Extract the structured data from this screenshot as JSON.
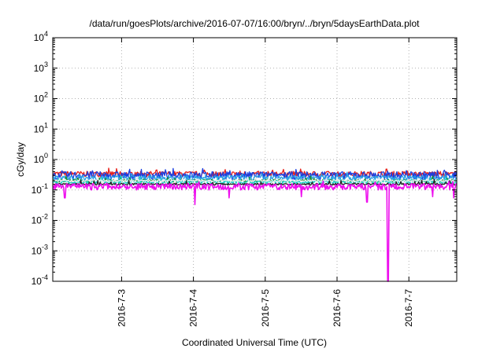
{
  "chart_data": {
    "type": "line",
    "title": "/data/run/goesPlots/archive/2016-07-07/16:00/bryn/../bryn/5daysEarthData.plot",
    "xlabel": "Coordinated Universal Time (UTC)",
    "ylabel": "cGy/day",
    "yscale": "log",
    "ylim": [
      0.0001,
      10000
    ],
    "xlim": [
      "2016-07-02 01:00",
      "2016-07-07 16:00"
    ],
    "x_ticks": [
      "2016-7-3",
      "2016-7-4",
      "2016-7-5",
      "2016-7-6",
      "2016-7-7"
    ],
    "y_ticks": [
      {
        "base": "10",
        "exp": "-4",
        "value": 0.0001
      },
      {
        "base": "10",
        "exp": "-3",
        "value": 0.001
      },
      {
        "base": "10",
        "exp": "-2",
        "value": 0.01
      },
      {
        "base": "10",
        "exp": "-1",
        "value": 0.1
      },
      {
        "base": "10",
        "exp": "0",
        "value": 1
      },
      {
        "base": "10",
        "exp": "1",
        "value": 10
      },
      {
        "base": "10",
        "exp": "2",
        "value": 100
      },
      {
        "base": "10",
        "exp": "3",
        "value": 1000
      },
      {
        "base": "10",
        "exp": "4",
        "value": 10000
      }
    ],
    "grid": true,
    "series": [
      {
        "color": "#e8201a",
        "base": 0.34,
        "variation": 0.07,
        "dips": []
      },
      {
        "color": "#1a3fe0",
        "base": 0.31,
        "variation": 0.09,
        "dips": []
      },
      {
        "color": "#2aa0e6",
        "base": 0.25,
        "variation": 0.05,
        "dips": []
      },
      {
        "color": "#1a8c2a",
        "base": 0.2,
        "variation": 0.02,
        "dips": []
      },
      {
        "color": "#20d0c8",
        "base": 0.185,
        "variation": 0.03,
        "dips": []
      },
      {
        "color": "#f0f0f0",
        "base": 0.2,
        "variation": 0.015,
        "dips": []
      },
      {
        "color": "#202020",
        "base": 0.155,
        "variation": 0.01,
        "dips": []
      },
      {
        "color": "#ee10ee",
        "base": 0.13,
        "variation": 0.03,
        "dips": [
          {
            "x": "2016-07-02 05:00",
            "y": 0.055
          },
          {
            "x": "2016-07-04 00:30",
            "y": 0.033
          },
          {
            "x": "2016-07-04 12:00",
            "y": 0.055
          },
          {
            "x": "2016-07-05 12:00",
            "y": 0.06
          },
          {
            "x": "2016-07-06 10:00",
            "y": 0.04
          },
          {
            "x": "2016-07-06 17:00",
            "y": 0.0001
          },
          {
            "x": "2016-07-07 08:00",
            "y": 0.06
          },
          {
            "x": "2016-07-07 15:00",
            "y": 0.055
          }
        ]
      }
    ]
  }
}
